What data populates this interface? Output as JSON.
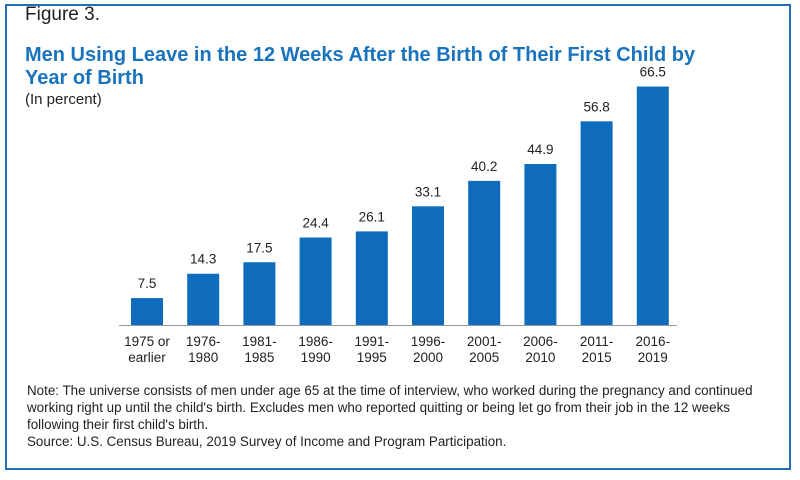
{
  "figure": {
    "label": "Figure 3.",
    "title_line1": "Men Using Leave in the 12 Weeks After the Birth of Their First Child by",
    "title_line2": "Year of Birth",
    "subtitle": "(In percent)",
    "note": "Note: The universe consists of men under age 65 at the time of interview, who worked during the pregnancy and continued working right up until the child's birth. Excludes men who reported quitting or being let go from their job in the 12 weeks following their first child's birth.",
    "source": "Source: U.S. Census Bureau, 2019 Survey of Income and Program Participation."
  },
  "colors": {
    "bar": "#0f6cbd",
    "accent": "#1a74bd",
    "border": "#1f6fb8"
  },
  "chart_data": {
    "type": "bar",
    "title": "Men Using Leave in the 12 Weeks After the Birth of Their First Child by Year of Birth",
    "ylabel": "",
    "xlabel": "",
    "ylim": [
      0,
      70
    ],
    "grid": false,
    "categories": [
      [
        "1975 or",
        "earlier"
      ],
      [
        "1976-",
        "1980"
      ],
      [
        "1981-",
        "1985"
      ],
      [
        "1986-",
        "1990"
      ],
      [
        "1991-",
        "1995"
      ],
      [
        "1996-",
        "2000"
      ],
      [
        "2001-",
        "2005"
      ],
      [
        "2006-",
        "2010"
      ],
      [
        "2011-",
        "2015"
      ],
      [
        "2016-",
        "2019"
      ]
    ],
    "values": [
      7.5,
      14.3,
      17.5,
      24.4,
      26.1,
      33.1,
      40.2,
      44.9,
      56.8,
      66.5
    ],
    "value_labels": [
      "7.5",
      "14.3",
      "17.5",
      "24.4",
      "26.1",
      "33.1",
      "40.2",
      "44.9",
      "56.8",
      "66.5"
    ]
  }
}
